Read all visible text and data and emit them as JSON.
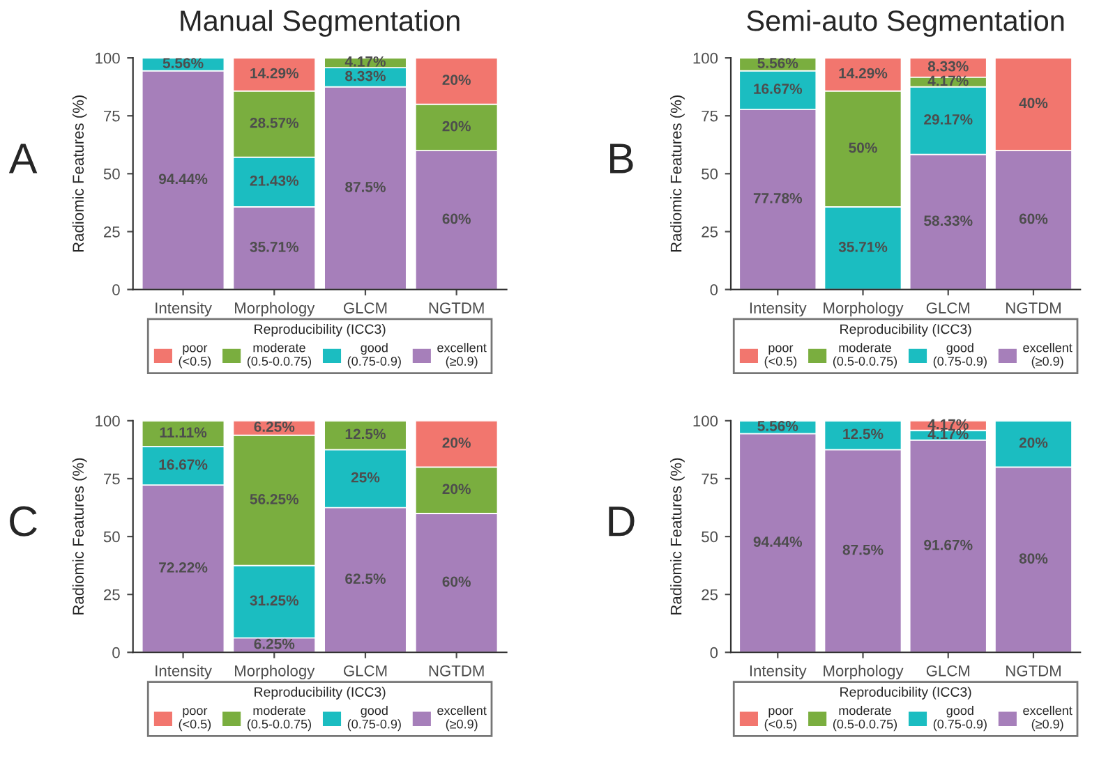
{
  "chart_data": [
    {
      "type": "bar",
      "stacked": true,
      "title": "Manual Segmentation",
      "ylabel": "Radiomic Features (%)",
      "legend_title": "Reproducibility (ICC3)",
      "legend": "bottom",
      "annotations": [
        "A"
      ],
      "ylim": [
        0,
        100
      ],
      "yticks": [
        0,
        25,
        50,
        75,
        100
      ],
      "grid": false,
      "categories": [
        "Intensity",
        "Morphology",
        "GLCM",
        "NGTDM"
      ],
      "series": [
        {
          "name": "excellent\n(≥0.9)",
          "color": "#a67fba",
          "values": [
            94.44,
            35.71,
            87.5,
            60
          ],
          "value_labels": [
            "94.44%",
            "35.71%",
            "87.5%",
            "60%"
          ]
        },
        {
          "name": "good\n(0.75-0.9)",
          "color": "#1bbdc1",
          "values": [
            5.56,
            21.43,
            8.33,
            null
          ],
          "value_labels": [
            "5.56%",
            "21.43%",
            "8.33%",
            null
          ]
        },
        {
          "name": "moderate\n(0.5-0.0.75)",
          "color": "#7aae3f",
          "values": [
            null,
            28.57,
            4.17,
            20
          ],
          "value_labels": [
            null,
            "28.57%",
            "4.17%",
            "20%"
          ]
        },
        {
          "name": "poor\n(<0.5)",
          "color": "#f2766e",
          "values": [
            null,
            14.29,
            null,
            20
          ],
          "value_labels": [
            null,
            "14.29%",
            null,
            "20%"
          ]
        }
      ]
    },
    {
      "type": "bar",
      "stacked": true,
      "title": "Semi-auto Segmentation",
      "ylabel": "Radiomic Features (%)",
      "legend_title": "Reproducibility (ICC3)",
      "legend": "bottom",
      "annotations": [
        "B"
      ],
      "ylim": [
        0,
        100
      ],
      "yticks": [
        0,
        25,
        50,
        75,
        100
      ],
      "grid": false,
      "categories": [
        "Intensity",
        "Morphology",
        "GLCM",
        "NGTDM"
      ],
      "series": [
        {
          "name": "excellent\n(≥0.9)",
          "color": "#a67fba",
          "values": [
            77.78,
            null,
            58.33,
            60
          ],
          "value_labels": [
            "77.78%",
            null,
            "58.33%",
            "60%"
          ]
        },
        {
          "name": "good\n(0.75-0.9)",
          "color": "#1bbdc1",
          "values": [
            16.67,
            35.71,
            29.17,
            null
          ],
          "value_labels": [
            "16.67%",
            "35.71%",
            "29.17%",
            null
          ]
        },
        {
          "name": "moderate\n(0.5-0.0.75)",
          "color": "#7aae3f",
          "values": [
            5.56,
            50,
            4.17,
            null
          ],
          "value_labels": [
            "5.56%",
            "50%",
            "4.17%",
            null
          ]
        },
        {
          "name": "poor\n(<0.5)",
          "color": "#f2766e",
          "values": [
            null,
            14.29,
            8.33,
            40
          ],
          "value_labels": [
            null,
            "14.29%",
            "8.33%",
            "40%"
          ]
        }
      ]
    },
    {
      "type": "bar",
      "stacked": true,
      "ylabel": "Radiomic Features (%)",
      "legend_title": "Reproducibility (ICC3)",
      "legend": "bottom",
      "annotations": [
        "C"
      ],
      "ylim": [
        0,
        100
      ],
      "yticks": [
        0,
        25,
        50,
        75,
        100
      ],
      "grid": false,
      "categories": [
        "Intensity",
        "Morphology",
        "GLCM",
        "NGTDM"
      ],
      "series": [
        {
          "name": "excellent\n(≥0.9)",
          "color": "#a67fba",
          "values": [
            72.22,
            6.25,
            62.5,
            60
          ],
          "value_labels": [
            "72.22%",
            "6.25%",
            "62.5%",
            "60%"
          ]
        },
        {
          "name": "good\n(0.75-0.9)",
          "color": "#1bbdc1",
          "values": [
            16.67,
            31.25,
            25,
            null
          ],
          "value_labels": [
            "16.67%",
            "31.25%",
            "25%",
            null
          ]
        },
        {
          "name": "moderate\n(0.5-0.0.75)",
          "color": "#7aae3f",
          "values": [
            11.11,
            56.25,
            12.5,
            20
          ],
          "value_labels": [
            "11.11%",
            "56.25%",
            "12.5%",
            "20%"
          ]
        },
        {
          "name": "poor\n(<0.5)",
          "color": "#f2766e",
          "values": [
            null,
            6.25,
            null,
            20
          ],
          "value_labels": [
            null,
            "6.25%",
            null,
            "20%"
          ]
        }
      ]
    },
    {
      "type": "bar",
      "stacked": true,
      "ylabel": "Radiomic Features (%)",
      "legend_title": "Reproducibility (ICC3)",
      "legend": "bottom",
      "annotations": [
        "D"
      ],
      "ylim": [
        0,
        100
      ],
      "yticks": [
        0,
        25,
        50,
        75,
        100
      ],
      "grid": false,
      "categories": [
        "Intensity",
        "Morphology",
        "GLCM",
        "NGTDM"
      ],
      "series": [
        {
          "name": "excellent\n(≥0.9)",
          "color": "#a67fba",
          "values": [
            94.44,
            87.5,
            91.67,
            80
          ],
          "value_labels": [
            "94.44%",
            "87.5%",
            "91.67%",
            "80%"
          ]
        },
        {
          "name": "good\n(0.75-0.9)",
          "color": "#1bbdc1",
          "values": [
            5.56,
            12.5,
            4.17,
            20
          ],
          "value_labels": [
            "5.56%",
            "12.5%",
            "4.17%",
            "20%"
          ]
        },
        {
          "name": "moderate\n(0.5-0.0.75)",
          "color": "#7aae3f",
          "values": [
            null,
            null,
            null,
            null
          ],
          "value_labels": [
            null,
            null,
            null,
            null
          ]
        },
        {
          "name": "poor\n(<0.5)",
          "color": "#f2766e",
          "values": [
            null,
            null,
            4.17,
            null
          ],
          "value_labels": [
            null,
            null,
            "4.17%",
            null
          ]
        }
      ]
    }
  ]
}
